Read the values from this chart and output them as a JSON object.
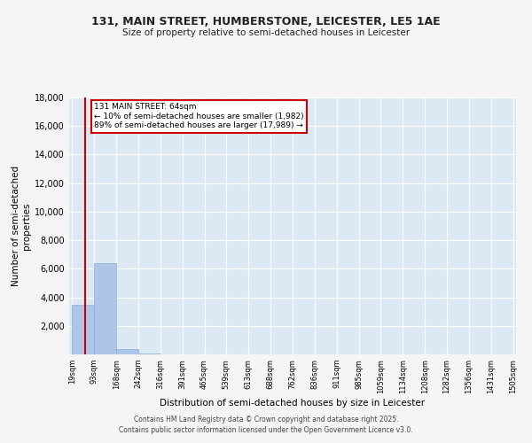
{
  "title": "131, MAIN STREET, HUMBERSTONE, LEICESTER, LE5 1AE",
  "subtitle": "Size of property relative to semi-detached houses in Leicester",
  "xlabel": "Distribution of semi-detached houses by size in Leicester",
  "ylabel": "Number of semi-detached\nproperties",
  "bar_left_edges": [
    19,
    93,
    168,
    242,
    316,
    391,
    465,
    539,
    613,
    688,
    762,
    836,
    911,
    985,
    1059,
    1134,
    1208,
    1282,
    1356,
    1431
  ],
  "bar_widths": [
    74,
    75,
    74,
    74,
    75,
    74,
    74,
    74,
    75,
    74,
    74,
    75,
    74,
    74,
    75,
    74,
    74,
    74,
    75,
    74
  ],
  "bar_heights": [
    3500,
    6400,
    400,
    80,
    10,
    5,
    2,
    1,
    1,
    0,
    0,
    0,
    0,
    0,
    0,
    0,
    0,
    0,
    0,
    0
  ],
  "bar_color": "#adc6e8",
  "bar_edge_color": "#8aafd4",
  "subject_size": 64,
  "red_line_color": "#cc0000",
  "annotation_line1": "131 MAIN STREET: 64sqm",
  "annotation_line2": "← 10% of semi-detached houses are smaller (1,982)",
  "annotation_line3": "89% of semi-detached houses are larger (17,989) →",
  "annotation_box_color": "#ffffff",
  "annotation_box_edge": "#cc0000",
  "xlim_min": 9,
  "xlim_max": 1515,
  "ylim_min": 0,
  "ylim_max": 18000,
  "xtick_labels": [
    "19sqm",
    "93sqm",
    "168sqm",
    "242sqm",
    "316sqm",
    "391sqm",
    "465sqm",
    "539sqm",
    "613sqm",
    "688sqm",
    "762sqm",
    "836sqm",
    "911sqm",
    "985sqm",
    "1059sqm",
    "1134sqm",
    "1208sqm",
    "1282sqm",
    "1356sqm",
    "1431sqm",
    "1505sqm"
  ],
  "xtick_positions": [
    19,
    93,
    168,
    242,
    316,
    391,
    465,
    539,
    613,
    688,
    762,
    836,
    911,
    985,
    1059,
    1134,
    1208,
    1282,
    1356,
    1431,
    1505
  ],
  "ytick_positions": [
    0,
    2000,
    4000,
    6000,
    8000,
    10000,
    12000,
    14000,
    16000,
    18000
  ],
  "bg_color": "#dce9f5",
  "grid_color": "#ffffff",
  "fig_bg_color": "#f5f5f5",
  "footer_line1": "Contains HM Land Registry data © Crown copyright and database right 2025.",
  "footer_line2": "Contains public sector information licensed under the Open Government Licence v3.0."
}
